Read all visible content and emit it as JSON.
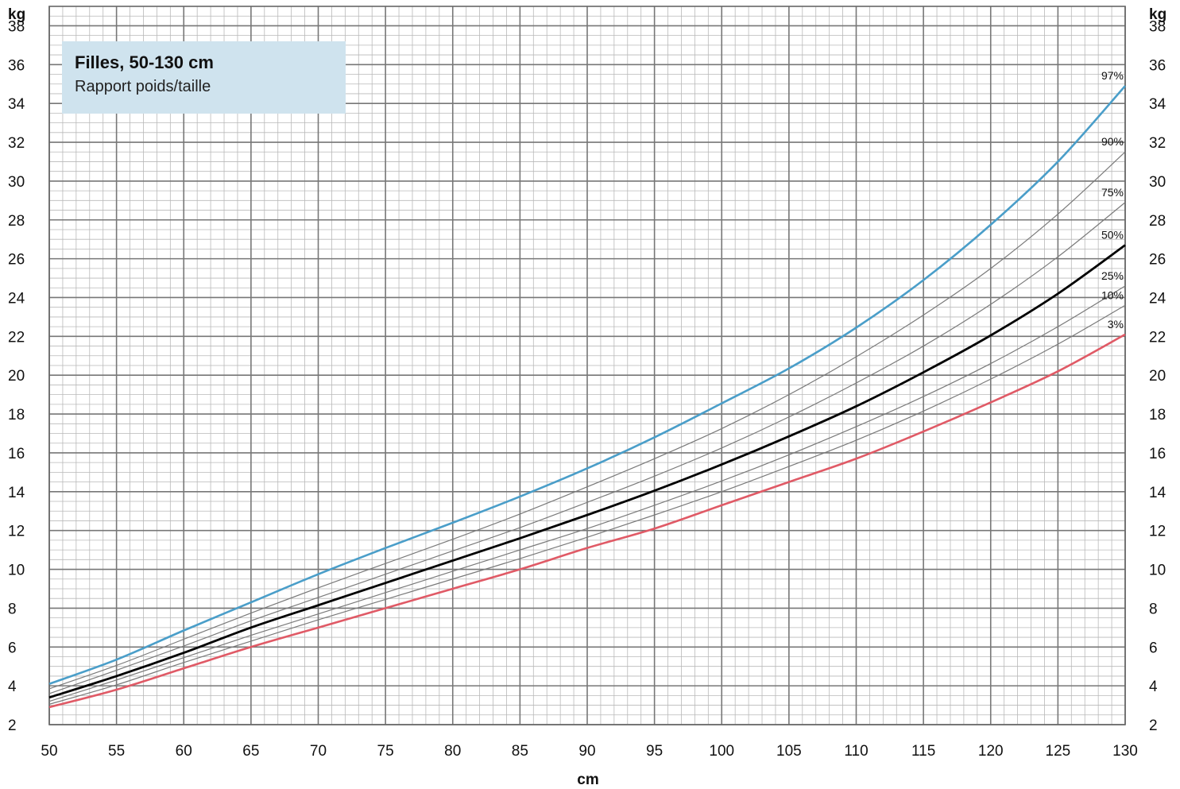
{
  "chart_data": {
    "type": "line",
    "title": "Filles, 50-130 cm",
    "subtitle": "Rapport poids/taille",
    "xlabel": "cm",
    "ylabel_left": "kg",
    "ylabel_right": "kg",
    "xlim": [
      50,
      130
    ],
    "ylim": [
      2,
      39
    ],
    "x_ticks": [
      50,
      55,
      60,
      65,
      70,
      75,
      80,
      85,
      90,
      95,
      100,
      105,
      110,
      115,
      120,
      125,
      130
    ],
    "y_ticks": [
      2,
      4,
      6,
      8,
      10,
      12,
      14,
      16,
      18,
      20,
      22,
      24,
      26,
      28,
      30,
      32,
      34,
      36,
      38
    ],
    "grid": true,
    "x": [
      50,
      55,
      60,
      65,
      70,
      75,
      80,
      85,
      90,
      95,
      100,
      105,
      110,
      115,
      120,
      125,
      130
    ],
    "series": [
      {
        "name": "3%",
        "color": "#e05a66",
        "values": [
          2.9,
          3.8,
          4.9,
          6.0,
          7.0,
          8.0,
          9.0,
          10.0,
          11.1,
          12.1,
          13.3,
          14.5,
          15.7,
          17.1,
          18.6,
          20.2,
          22.1
        ]
      },
      {
        "name": "10%",
        "color": "#7a7a7a",
        "values": [
          3.05,
          4.05,
          5.2,
          6.3,
          7.4,
          8.45,
          9.5,
          10.55,
          11.65,
          12.8,
          14.0,
          15.3,
          16.65,
          18.15,
          19.8,
          21.6,
          23.6
        ]
      },
      {
        "name": "25%",
        "color": "#7a7a7a",
        "values": [
          3.2,
          4.3,
          5.45,
          6.6,
          7.7,
          8.8,
          9.9,
          11.0,
          12.1,
          13.3,
          14.55,
          15.9,
          17.35,
          18.9,
          20.6,
          22.5,
          24.6
        ]
      },
      {
        "name": "50%",
        "color": "#000000",
        "values": [
          3.4,
          4.5,
          5.7,
          7.0,
          8.15,
          9.3,
          10.45,
          11.6,
          12.8,
          14.05,
          15.4,
          16.85,
          18.4,
          20.15,
          22.05,
          24.2,
          26.7
        ]
      },
      {
        "name": "75%",
        "color": "#7a7a7a",
        "values": [
          3.6,
          4.8,
          6.05,
          7.35,
          8.55,
          9.75,
          10.95,
          12.15,
          13.45,
          14.8,
          16.25,
          17.85,
          19.6,
          21.5,
          23.65,
          26.1,
          28.9
        ]
      },
      {
        "name": "90%",
        "color": "#7a7a7a",
        "values": [
          3.85,
          5.05,
          6.4,
          7.75,
          9.05,
          10.3,
          11.55,
          12.85,
          14.25,
          15.7,
          17.25,
          19.0,
          20.95,
          23.1,
          25.5,
          28.3,
          31.5
        ]
      },
      {
        "name": "97%",
        "color": "#4a9ec9",
        "values": [
          4.1,
          5.35,
          6.85,
          8.3,
          9.75,
          11.1,
          12.4,
          13.75,
          15.2,
          16.8,
          18.55,
          20.35,
          22.45,
          24.9,
          27.75,
          31.0,
          34.9
        ]
      }
    ]
  }
}
